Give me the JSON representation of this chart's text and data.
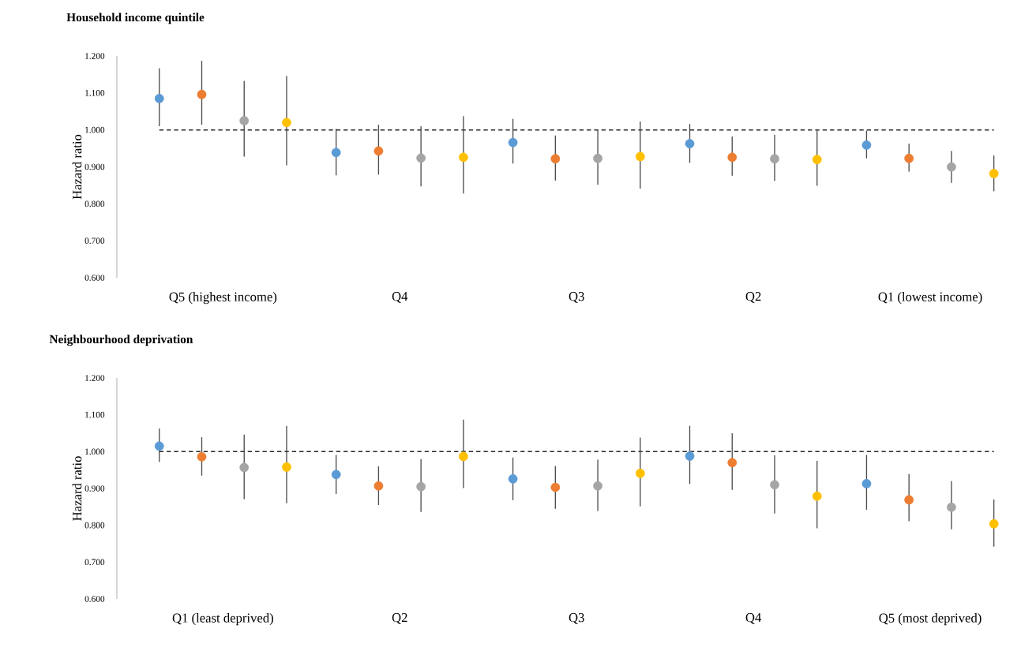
{
  "chart_data": [
    {
      "type": "scatter",
      "title": "Household income quintile",
      "ylabel": "Hazard ratio",
      "categories": [
        "Q5 (highest income)",
        "Q4",
        "Q3",
        "Q2",
        "Q1 (lowest income)"
      ],
      "series": [
        {
          "color": "#5b9bd5",
          "values": [
            1.085,
            0.939,
            0.966,
            0.963,
            0.959
          ],
          "errors": [
            [
              1.01,
              1.167
            ],
            [
              0.877,
              1.003
            ],
            [
              0.909,
              1.03
            ],
            [
              0.911,
              1.016
            ],
            [
              0.923,
              0.998
            ]
          ]
        },
        {
          "color": "#ed7d31",
          "values": [
            1.096,
            0.943,
            0.922,
            0.926,
            0.923
          ],
          "errors": [
            [
              1.014,
              1.187
            ],
            [
              0.879,
              1.014
            ],
            [
              0.863,
              0.985
            ],
            [
              0.876,
              0.982
            ],
            [
              0.887,
              0.963
            ]
          ]
        },
        {
          "color": "#a5a5a5",
          "values": [
            1.025,
            0.924,
            0.923,
            0.922,
            0.9
          ],
          "errors": [
            [
              0.928,
              1.133
            ],
            [
              0.847,
              1.01
            ],
            [
              0.852,
              1.0
            ],
            [
              0.862,
              0.987
            ],
            [
              0.857,
              0.943
            ]
          ]
        },
        {
          "color": "#ffc000",
          "values": [
            1.02,
            0.926,
            0.928,
            0.92,
            0.882
          ],
          "errors": [
            [
              0.904,
              1.146
            ],
            [
              0.828,
              1.037
            ],
            [
              0.841,
              1.023
            ],
            [
              0.849,
              0.998
            ],
            [
              0.834,
              0.931
            ]
          ]
        }
      ],
      "ylim": [
        0.6,
        1.2
      ],
      "yticks": [
        {
          "value": 0.6,
          "label": "0.600"
        },
        {
          "value": 0.7,
          "label": "0.700"
        },
        {
          "value": 0.8,
          "label": "0.800"
        },
        {
          "value": 0.9,
          "label": "0.900"
        },
        {
          "value": 1.0,
          "label": "1.000"
        },
        {
          "value": 1.1,
          "label": "1.100"
        },
        {
          "value": 1.2,
          "label": "1.200"
        }
      ],
      "ref_lines": [
        {
          "axis": "y",
          "value": 1.0,
          "line_style": "dashed"
        }
      ]
    },
    {
      "type": "scatter",
      "title": "Neighbourhood deprivation",
      "ylabel": "Hazard ratio",
      "categories": [
        "Q1 (least deprived)",
        "Q2",
        "Q3",
        "Q4",
        "Q5 (most deprived)"
      ],
      "series": [
        {
          "color": "#5b9bd5",
          "values": [
            1.015,
            0.938,
            0.926,
            0.988,
            0.913
          ],
          "errors": [
            [
              0.972,
              1.063
            ],
            [
              0.885,
              0.991
            ],
            [
              0.868,
              0.984
            ],
            [
              0.912,
              1.07
            ],
            [
              0.842,
              0.991
            ]
          ]
        },
        {
          "color": "#ed7d31",
          "values": [
            0.986,
            0.907,
            0.903,
            0.97,
            0.869
          ],
          "errors": [
            [
              0.935,
              1.039
            ],
            [
              0.855,
              0.96
            ],
            [
              0.845,
              0.961
            ],
            [
              0.896,
              1.05
            ],
            [
              0.811,
              0.939
            ]
          ]
        },
        {
          "color": "#a5a5a5",
          "values": [
            0.957,
            0.905,
            0.907,
            0.91,
            0.849
          ],
          "errors": [
            [
              0.871,
              1.046
            ],
            [
              0.836,
              0.98
            ],
            [
              0.839,
              0.978
            ],
            [
              0.832,
              0.99
            ],
            [
              0.789,
              0.92
            ]
          ]
        },
        {
          "color": "#ffc000",
          "values": [
            0.958,
            0.987,
            0.941,
            0.879,
            0.804
          ],
          "errors": [
            [
              0.86,
              1.07
            ],
            [
              0.901,
              1.087
            ],
            [
              0.851,
              1.038
            ],
            [
              0.792,
              0.975
            ],
            [
              0.742,
              0.87
            ]
          ]
        }
      ],
      "ylim": [
        0.6,
        1.2
      ],
      "yticks": [
        {
          "value": 0.6,
          "label": "0.600"
        },
        {
          "value": 0.7,
          "label": "0.700"
        },
        {
          "value": 0.8,
          "label": "0.800"
        },
        {
          "value": 0.9,
          "label": "0.900"
        },
        {
          "value": 1.0,
          "label": "1.000"
        },
        {
          "value": 1.1,
          "label": "1.100"
        },
        {
          "value": 1.2,
          "label": "1.200"
        }
      ],
      "ref_lines": [
        {
          "axis": "y",
          "value": 1.0,
          "line_style": "dashed"
        }
      ]
    }
  ]
}
